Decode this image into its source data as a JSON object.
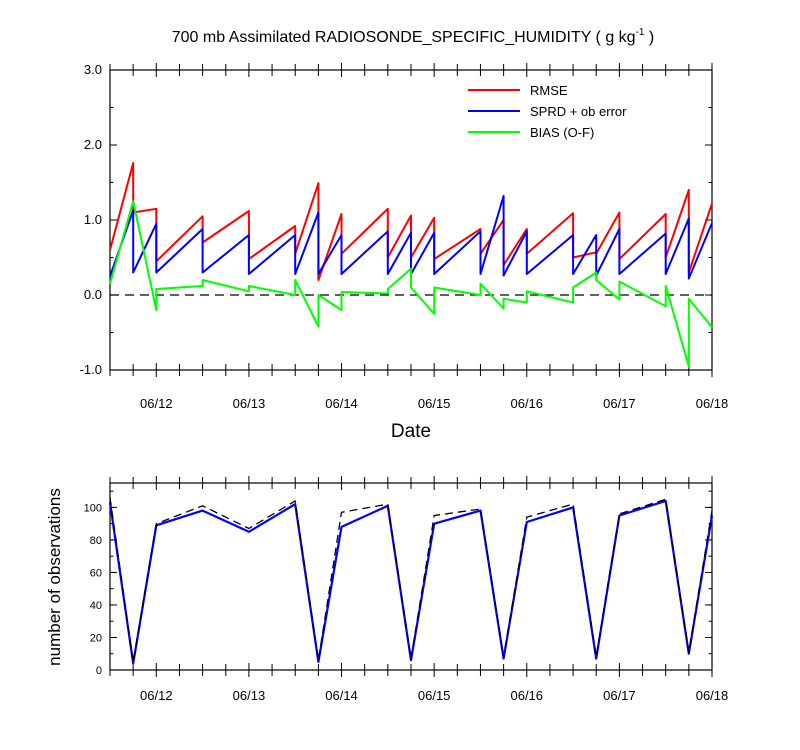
{
  "chart_data": [
    {
      "type": "line",
      "title": "700 mb Assimilated RADIOSONDE_SPECIFIC_HUMIDITY ( g kg",
      "title_sup": "-1",
      "title_end": " )",
      "xlabel": "Date",
      "ylabel": "",
      "xlim": [
        11.5,
        18.0
      ],
      "ylim": [
        -1.0,
        3.0
      ],
      "x_ticks": [
        12,
        13,
        14,
        15,
        16,
        17,
        18
      ],
      "x_tick_labels": [
        "06/12",
        "06/13",
        "06/14",
        "06/15",
        "06/16",
        "06/17",
        "06/18"
      ],
      "y_ticks": [
        -1,
        0,
        1,
        2,
        3
      ],
      "y_tick_labels": [
        "-1.0",
        "0.0",
        "1.0",
        "2.0",
        "3.0"
      ],
      "zero_line": "dashed",
      "legend_position": "top-right",
      "series": [
        {
          "name": "RMSE",
          "color": "#ff0000",
          "x": [
            11.5,
            11.75,
            11.75,
            12.0,
            12.0,
            12.5,
            12.5,
            13.0,
            13.0,
            13.5,
            13.5,
            13.75,
            13.75,
            14.0,
            14.0,
            14.5,
            14.5,
            14.75,
            14.75,
            15.0,
            15.0,
            15.5,
            15.5,
            15.75,
            15.75,
            16.0,
            16.0,
            16.5,
            16.5,
            16.75,
            16.75,
            17.0,
            17.0,
            17.5,
            17.5,
            17.75,
            17.75,
            18.0
          ],
          "y": [
            0.6,
            1.76,
            1.1,
            1.15,
            0.45,
            1.05,
            0.7,
            1.12,
            0.48,
            0.92,
            0.55,
            1.49,
            0.2,
            1.08,
            0.55,
            1.15,
            0.5,
            1.06,
            0.5,
            1.03,
            0.48,
            0.88,
            0.55,
            1.0,
            0.4,
            0.88,
            0.55,
            1.09,
            0.5,
            0.57,
            0.55,
            1.1,
            0.48,
            1.08,
            0.5,
            1.4,
            0.3,
            1.22
          ]
        },
        {
          "name": "SPRD + ob error",
          "color": "#0000ff",
          "x": [
            11.5,
            11.75,
            11.75,
            12.0,
            12.0,
            12.5,
            12.5,
            13.0,
            13.0,
            13.5,
            13.5,
            13.75,
            13.75,
            14.0,
            14.0,
            14.5,
            14.5,
            14.75,
            14.75,
            15.0,
            15.0,
            15.5,
            15.5,
            15.75,
            15.75,
            16.0,
            16.0,
            16.5,
            16.5,
            16.75,
            16.75,
            17.0,
            17.0,
            17.5,
            17.5,
            17.75,
            17.75,
            18.0
          ],
          "y": [
            0.25,
            1.13,
            0.3,
            0.95,
            0.3,
            0.88,
            0.3,
            0.8,
            0.28,
            0.8,
            0.28,
            1.1,
            0.28,
            0.8,
            0.28,
            0.85,
            0.28,
            0.83,
            0.28,
            0.83,
            0.28,
            0.85,
            0.28,
            1.32,
            0.26,
            0.85,
            0.28,
            0.8,
            0.28,
            0.8,
            0.26,
            0.88,
            0.28,
            0.82,
            0.28,
            1.02,
            0.22,
            0.96
          ]
        },
        {
          "name": "BIAS (O-F)",
          "color": "#00ff00",
          "x": [
            11.5,
            11.75,
            12.0,
            12.0,
            12.5,
            12.5,
            13.0,
            13.0,
            13.5,
            13.5,
            13.75,
            13.75,
            14.0,
            14.0,
            14.5,
            14.5,
            14.75,
            14.75,
            15.0,
            15.0,
            15.5,
            15.5,
            15.75,
            15.75,
            16.0,
            16.0,
            16.5,
            16.5,
            16.75,
            16.75,
            17.0,
            17.0,
            17.5,
            17.5,
            17.75,
            17.75,
            18.0
          ],
          "y": [
            0.15,
            1.25,
            -0.2,
            0.08,
            0.12,
            0.2,
            0.05,
            0.12,
            0.0,
            0.2,
            -0.42,
            0.0,
            -0.2,
            0.04,
            0.02,
            0.08,
            0.35,
            0.1,
            -0.25,
            0.1,
            0.0,
            0.15,
            -0.18,
            -0.05,
            -0.1,
            0.05,
            -0.1,
            0.1,
            0.3,
            0.2,
            -0.06,
            0.18,
            -0.15,
            0.12,
            -0.95,
            -0.05,
            -0.43
          ]
        }
      ]
    },
    {
      "type": "line",
      "title": "",
      "xlabel": "",
      "ylabel": "number of observations",
      "xlim": [
        11.5,
        18.0
      ],
      "ylim": [
        0,
        115
      ],
      "x_ticks": [
        12,
        13,
        14,
        15,
        16,
        17,
        18
      ],
      "x_tick_labels": [
        "06/12",
        "06/13",
        "06/14",
        "06/15",
        "06/16",
        "06/17",
        "06/18"
      ],
      "y_ticks": [
        0,
        20,
        40,
        60,
        80,
        100
      ],
      "y_tick_labels": [
        "0",
        "20",
        "40",
        "60",
        "80",
        "100"
      ],
      "series": [
        {
          "color": "#0000ff",
          "style": "solid",
          "x": [
            11.5,
            11.75,
            12.0,
            12.5,
            13.0,
            13.5,
            13.75,
            14.0,
            14.5,
            14.75,
            15.0,
            15.5,
            15.75,
            16.0,
            16.5,
            16.75,
            17.0,
            17.5,
            17.75,
            18.0
          ],
          "y": [
            103,
            4,
            89,
            98,
            85,
            102,
            5,
            88,
            101,
            6,
            90,
            98,
            7,
            91,
            100,
            7,
            95,
            104,
            10,
            95
          ]
        },
        {
          "color": "#000000",
          "style": "dashed",
          "x": [
            11.5,
            11.75,
            12.0,
            12.5,
            13.0,
            13.5,
            13.75,
            14.0,
            14.5,
            14.75,
            15.0,
            15.5,
            15.75,
            16.0,
            16.5,
            16.75,
            17.0,
            17.5,
            17.75,
            18.0
          ],
          "y": [
            106,
            5,
            90,
            101,
            87,
            104,
            6,
            97,
            102,
            7,
            95,
            99,
            8,
            94,
            102,
            8,
            96,
            105,
            11,
            98
          ]
        }
      ]
    }
  ]
}
